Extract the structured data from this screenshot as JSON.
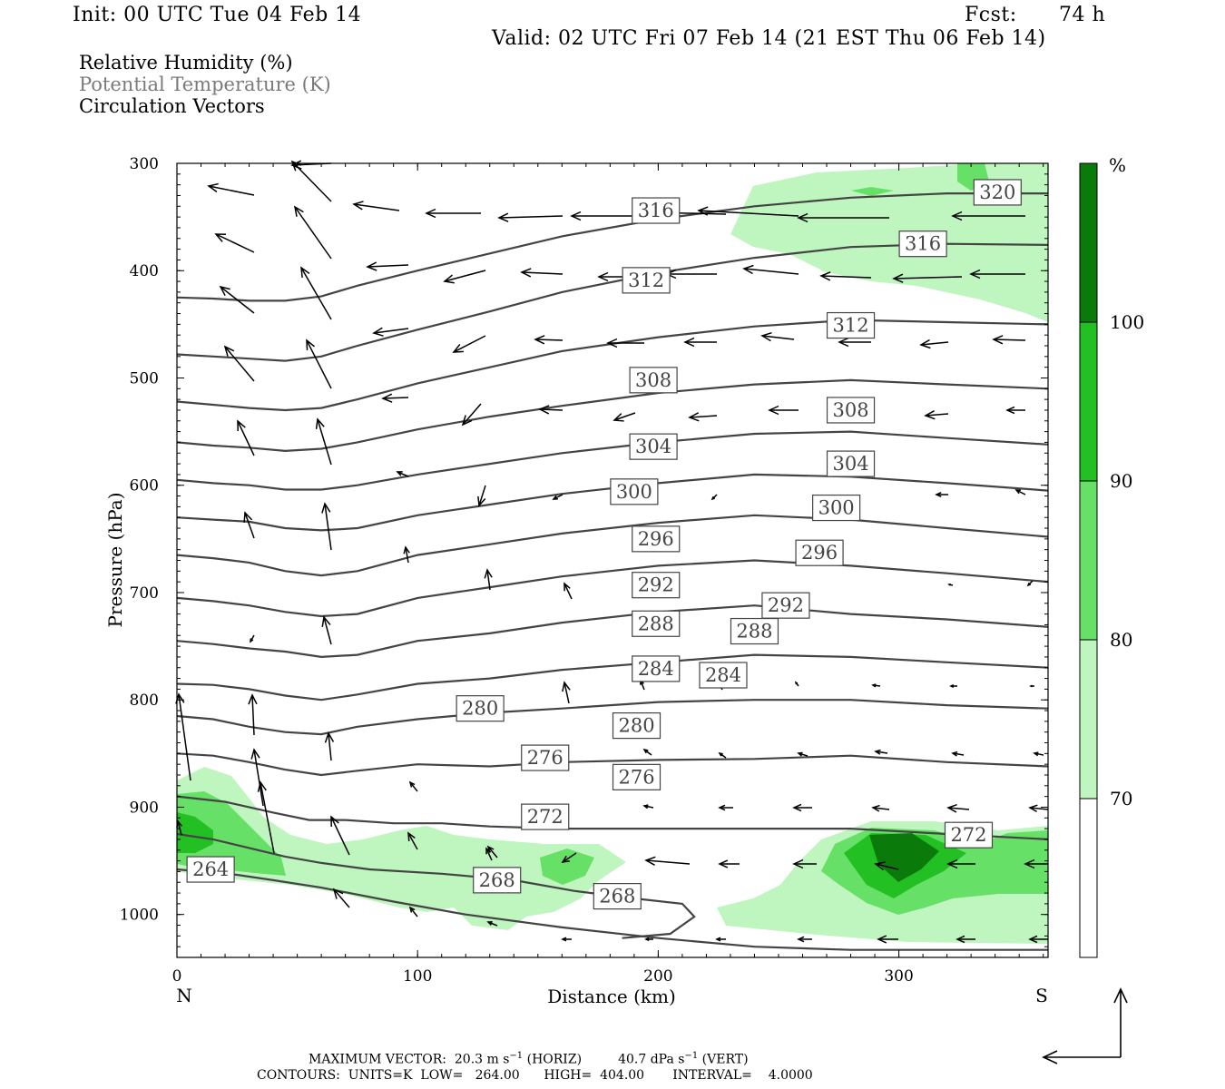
{
  "header": {
    "init": "Init: 00 UTC Tue 04 Feb 14",
    "fcst_label": "Fcst:",
    "fcst_hours": "74 h",
    "valid": "Valid: 02 UTC Fri 07 Feb 14 (21 EST Thu 06 Feb 14)"
  },
  "legend": {
    "rh": "Relative Humidity (%)",
    "theta": "Potential Temperature (K)",
    "vectors": "Circulation Vectors"
  },
  "colors": {
    "rh_70": "#bff5bf",
    "rh_80": "#66e066",
    "rh_90": "#22c022",
    "rh_100": "#0a7a0a",
    "contour": "#444444",
    "vector": "#000000"
  },
  "footer": {
    "max_vector": "MAXIMUM VECTOR:  20.3 m s",
    "max_vector_sup1": "−1",
    "max_vector_mid": " (HORIZ)         40.7 dPa s",
    "max_vector_sup2": "−1",
    "max_vector_end": " (VERT)",
    "contours": "CONTOURS:  UNITS=K  LOW=   264.00      HIGH=  404.00       INTERVAL=    4.0000"
  },
  "chart_data": {
    "type": "cross-section",
    "xlabel": "Distance (km)",
    "ylabel": "Pressure (hPa)",
    "xlim": [
      0,
      362
    ],
    "ylim": [
      1040,
      300
    ],
    "x_ticks": [
      "0",
      "100",
      "200",
      "300"
    ],
    "y_ticks": [
      "300",
      "400",
      "500",
      "600",
      "700",
      "800",
      "900",
      "1000"
    ],
    "x_end_labels": {
      "left": "N",
      "right": "S"
    },
    "colorbar": {
      "unit": "%",
      "levels": [
        "70",
        "80",
        "90",
        "100"
      ]
    },
    "theta_contours": [
      {
        "label": "264",
        "p_profile": [
          [
            0,
            958
          ],
          [
            10,
            960
          ],
          [
            25,
            963
          ],
          [
            40,
            968
          ],
          [
            60,
            975
          ],
          [
            90,
            988
          ],
          [
            120,
            1000
          ],
          [
            160,
            1012
          ],
          [
            200,
            1022
          ],
          [
            240,
            1030
          ],
          [
            280,
            1033
          ],
          [
            362,
            1033
          ]
        ]
      },
      {
        "label": "268",
        "p_profile": [
          [
            0,
            925
          ],
          [
            15,
            930
          ],
          [
            30,
            938
          ],
          [
            45,
            946
          ],
          [
            60,
            952
          ],
          [
            80,
            958
          ],
          [
            110,
            962
          ],
          [
            140,
            968
          ],
          [
            165,
            978
          ],
          [
            190,
            985
          ],
          [
            210,
            990
          ],
          [
            215,
            1002
          ],
          [
            205,
            1018
          ],
          [
            185,
            1022
          ]
        ]
      },
      {
        "label": "272",
        "p_profile": [
          [
            0,
            890
          ],
          [
            20,
            895
          ],
          [
            40,
            905
          ],
          [
            55,
            912
          ],
          [
            70,
            912
          ],
          [
            90,
            915
          ],
          [
            110,
            915
          ],
          [
            130,
            918
          ],
          [
            160,
            920
          ],
          [
            200,
            920
          ],
          [
            240,
            920
          ],
          [
            280,
            920
          ],
          [
            320,
            925
          ],
          [
            362,
            930
          ]
        ]
      },
      {
        "label": "276",
        "p_profile": [
          [
            0,
            850
          ],
          [
            15,
            852
          ],
          [
            30,
            858
          ],
          [
            45,
            865
          ],
          [
            60,
            870
          ],
          [
            75,
            866
          ],
          [
            100,
            860
          ],
          [
            130,
            862
          ],
          [
            160,
            858
          ],
          [
            200,
            856
          ],
          [
            240,
            855
          ],
          [
            280,
            852
          ],
          [
            320,
            858
          ],
          [
            362,
            862
          ]
        ]
      },
      {
        "label": "280",
        "p_profile": [
          [
            0,
            815
          ],
          [
            15,
            818
          ],
          [
            30,
            825
          ],
          [
            45,
            830
          ],
          [
            60,
            832
          ],
          [
            75,
            825
          ],
          [
            100,
            818
          ],
          [
            130,
            812
          ],
          [
            160,
            808
          ],
          [
            200,
            802
          ],
          [
            240,
            800
          ],
          [
            280,
            800
          ],
          [
            320,
            805
          ],
          [
            362,
            808
          ]
        ]
      },
      {
        "label": "284",
        "p_profile": [
          [
            0,
            785
          ],
          [
            15,
            786
          ],
          [
            30,
            790
          ],
          [
            45,
            796
          ],
          [
            60,
            800
          ],
          [
            75,
            795
          ],
          [
            100,
            785
          ],
          [
            130,
            780
          ],
          [
            160,
            772
          ],
          [
            200,
            765
          ],
          [
            240,
            758
          ],
          [
            280,
            760
          ],
          [
            320,
            765
          ],
          [
            362,
            770
          ]
        ]
      },
      {
        "label": "288",
        "p_profile": [
          [
            0,
            745
          ],
          [
            15,
            748
          ],
          [
            30,
            752
          ],
          [
            45,
            755
          ],
          [
            60,
            760
          ],
          [
            75,
            758
          ],
          [
            100,
            745
          ],
          [
            130,
            738
          ],
          [
            160,
            728
          ],
          [
            200,
            718
          ],
          [
            240,
            712
          ],
          [
            280,
            720
          ],
          [
            320,
            725
          ],
          [
            362,
            732
          ]
        ]
      },
      {
        "label": "292",
        "p_profile": [
          [
            0,
            705
          ],
          [
            15,
            708
          ],
          [
            30,
            712
          ],
          [
            45,
            718
          ],
          [
            60,
            722
          ],
          [
            75,
            720
          ],
          [
            100,
            705
          ],
          [
            130,
            695
          ],
          [
            160,
            685
          ],
          [
            200,
            675
          ],
          [
            240,
            670
          ],
          [
            280,
            675
          ],
          [
            320,
            682
          ],
          [
            362,
            690
          ]
        ]
      },
      {
        "label": "296",
        "p_profile": [
          [
            0,
            665
          ],
          [
            15,
            668
          ],
          [
            30,
            672
          ],
          [
            45,
            680
          ],
          [
            60,
            684
          ],
          [
            75,
            680
          ],
          [
            100,
            665
          ],
          [
            130,
            655
          ],
          [
            160,
            645
          ],
          [
            200,
            635
          ],
          [
            240,
            628
          ],
          [
            280,
            632
          ],
          [
            320,
            640
          ],
          [
            362,
            648
          ]
        ]
      },
      {
        "label": "300",
        "p_profile": [
          [
            0,
            630
          ],
          [
            15,
            632
          ],
          [
            30,
            634
          ],
          [
            45,
            640
          ],
          [
            60,
            642
          ],
          [
            75,
            640
          ],
          [
            100,
            628
          ],
          [
            130,
            618
          ],
          [
            160,
            608
          ],
          [
            200,
            598
          ],
          [
            240,
            590
          ],
          [
            280,
            592
          ],
          [
            320,
            598
          ],
          [
            362,
            605
          ]
        ]
      },
      {
        "label": "304",
        "p_profile": [
          [
            0,
            595
          ],
          [
            15,
            598
          ],
          [
            30,
            600
          ],
          [
            45,
            604
          ],
          [
            60,
            604
          ],
          [
            75,
            600
          ],
          [
            100,
            590
          ],
          [
            130,
            580
          ],
          [
            160,
            570
          ],
          [
            200,
            560
          ],
          [
            240,
            552
          ],
          [
            280,
            550
          ],
          [
            320,
            556
          ],
          [
            362,
            562
          ]
        ]
      },
      {
        "label": "308",
        "p_profile": [
          [
            0,
            560
          ],
          [
            15,
            563
          ],
          [
            30,
            565
          ],
          [
            45,
            568
          ],
          [
            60,
            566
          ],
          [
            75,
            560
          ],
          [
            100,
            548
          ],
          [
            130,
            536
          ],
          [
            160,
            526
          ],
          [
            200,
            514
          ],
          [
            240,
            506
          ],
          [
            280,
            502
          ],
          [
            320,
            506
          ],
          [
            362,
            510
          ]
        ]
      },
      {
        "label": "312",
        "p_profile": [
          [
            0,
            522
          ],
          [
            15,
            525
          ],
          [
            30,
            528
          ],
          [
            45,
            530
          ],
          [
            60,
            528
          ],
          [
            75,
            520
          ],
          [
            100,
            505
          ],
          [
            130,
            490
          ],
          [
            160,
            475
          ],
          [
            200,
            462
          ],
          [
            240,
            452
          ],
          [
            280,
            446
          ],
          [
            320,
            448
          ],
          [
            362,
            450
          ]
        ]
      },
      {
        "label": "316",
        "p_profile": [
          [
            0,
            478
          ],
          [
            15,
            480
          ],
          [
            30,
            482
          ],
          [
            45,
            484
          ],
          [
            60,
            480
          ],
          [
            75,
            470
          ],
          [
            100,
            455
          ],
          [
            130,
            438
          ],
          [
            160,
            420
          ],
          [
            200,
            402
          ],
          [
            240,
            388
          ],
          [
            280,
            378
          ],
          [
            320,
            375
          ],
          [
            362,
            376
          ]
        ]
      },
      {
        "label": "320",
        "p_profile": [
          [
            0,
            425
          ],
          [
            15,
            426
          ],
          [
            30,
            428
          ],
          [
            45,
            428
          ],
          [
            60,
            424
          ],
          [
            75,
            414
          ],
          [
            100,
            400
          ],
          [
            130,
            384
          ],
          [
            160,
            368
          ],
          [
            200,
            352
          ],
          [
            240,
            340
          ],
          [
            280,
            332
          ],
          [
            320,
            328
          ],
          [
            362,
            328
          ]
        ]
      }
    ],
    "contour_labels": [
      {
        "label": "264",
        "x": 14,
        "p": 958
      },
      {
        "label": "268",
        "x": 133,
        "p": 968
      },
      {
        "label": "268",
        "x": 183,
        "p": 983
      },
      {
        "label": "272",
        "x": 153,
        "p": 909
      },
      {
        "label": "272",
        "x": 329,
        "p": 926
      },
      {
        "label": "276",
        "x": 153,
        "p": 854
      },
      {
        "label": "276",
        "x": 191,
        "p": 872
      },
      {
        "label": "280",
        "x": 126,
        "p": 808
      },
      {
        "label": "280",
        "x": 191,
        "p": 824
      },
      {
        "label": "284",
        "x": 199,
        "p": 771
      },
      {
        "label": "284",
        "x": 227,
        "p": 777
      },
      {
        "label": "288",
        "x": 199,
        "p": 729
      },
      {
        "label": "288",
        "x": 240,
        "p": 736
      },
      {
        "label": "292",
        "x": 199,
        "p": 693
      },
      {
        "label": "292",
        "x": 253,
        "p": 712
      },
      {
        "label": "296",
        "x": 199,
        "p": 650
      },
      {
        "label": "296",
        "x": 267,
        "p": 663
      },
      {
        "label": "300",
        "x": 190,
        "p": 606
      },
      {
        "label": "300",
        "x": 274,
        "p": 621
      },
      {
        "label": "304",
        "x": 198,
        "p": 564
      },
      {
        "label": "304",
        "x": 280,
        "p": 580
      },
      {
        "label": "308",
        "x": 198,
        "p": 502
      },
      {
        "label": "308",
        "x": 280,
        "p": 530
      },
      {
        "label": "312",
        "x": 195,
        "p": 409
      },
      {
        "label": "312",
        "x": 280,
        "p": 451
      },
      {
        "label": "316",
        "x": 199,
        "p": 344
      },
      {
        "label": "316",
        "x": 310,
        "p": 375
      },
      {
        "label": "320",
        "x": 341,
        "p": 327
      }
    ]
  }
}
